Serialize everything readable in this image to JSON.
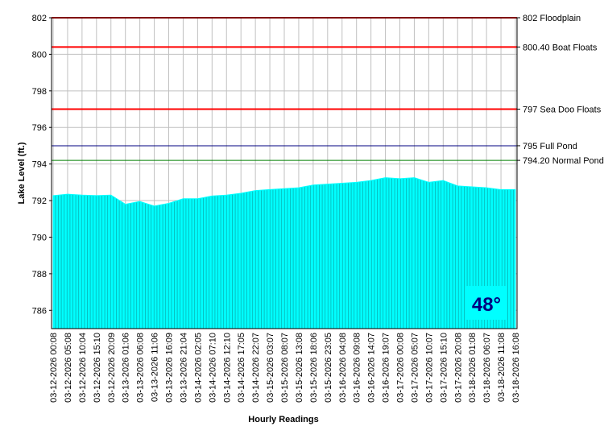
{
  "chart_data": {
    "type": "area",
    "y_label": "Lake Level (ft.)",
    "x_label": "Hourly Readings",
    "categories": [
      "03-12-2026 00:08",
      "03-12-2026 05:08",
      "03-12-2026 10:04",
      "03-12-2026 15:10",
      "03-12-2026 20:09",
      "03-13-2026 01:06",
      "03-13-2026 06:08",
      "03-13-2026 11:06",
      "03-13-2026 16:09",
      "03-13-2026 21:04",
      "03-14-2026 02:05",
      "03-14-2026 07:10",
      "03-14-2026 12:10",
      "03-14-2026 17:05",
      "03-14-2026 22:07",
      "03-15-2026 03:07",
      "03-15-2026 08:07",
      "03-15-2026 13:08",
      "03-15-2026 18:06",
      "03-15-2026 23:05",
      "03-16-2026 04:08",
      "03-16-2026 09:08",
      "03-16-2026 14:07",
      "03-16-2026 19:07",
      "03-17-2026 00:08",
      "03-17-2026 05:07",
      "03-17-2026 10:07",
      "03-17-2026 15:10",
      "03-17-2026 20:08",
      "03-18-2026 01:08",
      "03-18-2026 06:07",
      "03-18-2026 11:08",
      "03-18-2026 16:08"
    ],
    "values": [
      792.27,
      792.35,
      792.3,
      792.27,
      792.3,
      791.8,
      791.95,
      791.7,
      791.85,
      792.1,
      792.1,
      792.25,
      792.3,
      792.4,
      792.55,
      792.6,
      792.65,
      792.7,
      792.85,
      792.9,
      792.95,
      793.0,
      793.1,
      793.25,
      793.2,
      793.25,
      793.0,
      793.1,
      792.8,
      792.75,
      792.7,
      792.6,
      792.6
    ],
    "color": "#00ffff",
    "ylim": [
      785,
      802
    ],
    "yticks": [
      786,
      788,
      790,
      792,
      794,
      796,
      798,
      800,
      802
    ],
    "grid": true,
    "reference_lines": [
      {
        "value": 802,
        "label": "802 Floodplain",
        "color": "#ff0000"
      },
      {
        "value": 800.4,
        "label": "800.40 Boat Floats",
        "color": "#ff0000"
      },
      {
        "value": 797,
        "label": "797 Sea Doo Floats",
        "color": "#ff0000"
      },
      {
        "value": 795,
        "label": "795 Full Pond",
        "color": "#000080"
      },
      {
        "value": 794.2,
        "label": "794.20 Normal Pond",
        "color": "#008000"
      }
    ],
    "badge": "48°"
  }
}
